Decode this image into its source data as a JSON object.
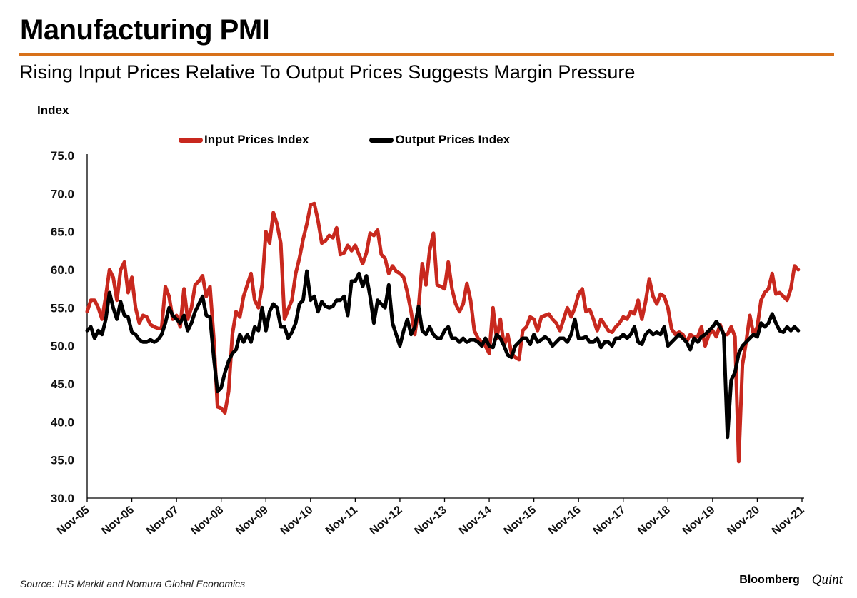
{
  "header": {
    "title": "Manufacturing PMI",
    "subtitle": "Rising Input Prices Relative To Output Prices Suggests Margin Pressure",
    "accent_color": "#d8711a"
  },
  "footer": {
    "source": "Source: IHS Markit and Nomura Global Economics",
    "brand_primary": "Bloomberg",
    "brand_secondary": "Quint"
  },
  "chart_data": {
    "type": "line",
    "title": "Manufacturing PMI",
    "subtitle": "Rising Input Prices Relative To Output Prices Suggests Margin Pressure",
    "xlabel": "",
    "ylabel": "Index",
    "ylim": [
      30,
      75
    ],
    "yticks": [
      "30.0",
      "35.0",
      "40.0",
      "45.0",
      "50.0",
      "55.0",
      "60.0",
      "65.0",
      "70.0",
      "75.0"
    ],
    "ytick_values": [
      30,
      35,
      40,
      45,
      50,
      55,
      60,
      65,
      70,
      75
    ],
    "xticks": [
      "Nov-05",
      "Nov-06",
      "Nov-07",
      "Nov-08",
      "Nov-09",
      "Nov-10",
      "Nov-11",
      "Nov-12",
      "Nov-13",
      "Nov-14",
      "Nov-15",
      "Nov-16",
      "Nov-17",
      "Nov-18",
      "Nov-19",
      "Nov-20",
      "Nov-21"
    ],
    "x_start": "Nov-05",
    "x_end": "Nov-21",
    "frequency": "monthly",
    "grid": false,
    "legend_position": "top-center",
    "series": [
      {
        "name": "Input Prices Index",
        "color": "#c8281e",
        "values": [
          54.5,
          56.0,
          56.0,
          55.0,
          53.5,
          56.5,
          60.0,
          59.0,
          56.0,
          60.0,
          61.0,
          57.0,
          59.0,
          55.0,
          53.0,
          54.0,
          53.8,
          52.8,
          52.5,
          52.3,
          52.3,
          57.8,
          56.5,
          53.5,
          54.0,
          52.5,
          57.5,
          53.5,
          55.0,
          58.0,
          58.5,
          59.2,
          56.5,
          57.8,
          51.0,
          42.0,
          41.8,
          41.2,
          44.0,
          51.5,
          54.5,
          53.8,
          56.5,
          58.0,
          59.5,
          56.0,
          55.0,
          58.0,
          65.0,
          63.5,
          67.5,
          66.0,
          63.5,
          53.5,
          54.8,
          56.0,
          59.5,
          61.5,
          64.0,
          66.0,
          68.5,
          68.7,
          66.5,
          63.5,
          63.8,
          64.5,
          64.2,
          65.5,
          62.0,
          62.2,
          63.2,
          62.5,
          63.2,
          62.0,
          60.8,
          62.2,
          64.8,
          64.5,
          65.2,
          62.0,
          61.5,
          59.5,
          60.5,
          59.8,
          59.5,
          59.0,
          57.0,
          54.5,
          51.5,
          55.0,
          60.8,
          58.0,
          62.5,
          64.8,
          58.0,
          57.8,
          57.5,
          61.0,
          57.5,
          55.5,
          54.5,
          55.5,
          58.2,
          56.0,
          52.0,
          51.0,
          50.5,
          50.0,
          49.0,
          55.0,
          51.0,
          53.5,
          50.0,
          51.5,
          49.0,
          48.5,
          48.2,
          52.0,
          52.5,
          53.8,
          53.5,
          52.0,
          53.8,
          54.0,
          54.2,
          53.5,
          53.0,
          52.0,
          53.5,
          55.0,
          53.8,
          55.0,
          56.8,
          57.5,
          54.5,
          54.8,
          53.5,
          52.0,
          53.5,
          52.8,
          52.0,
          51.8,
          52.5,
          53.0,
          53.8,
          53.5,
          54.5,
          54.2,
          56.0,
          53.5,
          55.8,
          58.8,
          56.5,
          55.5,
          56.8,
          56.5,
          55.0,
          52.2,
          51.5,
          51.8,
          51.5,
          50.5,
          51.5,
          51.2,
          51.2,
          52.5,
          50.0,
          51.5,
          52.0,
          51.2,
          52.8,
          51.5,
          51.5,
          52.5,
          51.2,
          34.8,
          47.5,
          50.5,
          54.0,
          51.5,
          52.5,
          56.0,
          57.0,
          57.5,
          59.5,
          56.8,
          57.0,
          56.5,
          56.0,
          57.5,
          60.5,
          60.0
        ]
      },
      {
        "name": "Output Prices Index",
        "color": "#000000",
        "values": [
          52.0,
          52.5,
          51.0,
          52.0,
          51.5,
          53.5,
          57.0,
          55.0,
          53.5,
          55.8,
          54.0,
          53.8,
          51.8,
          51.5,
          50.8,
          50.5,
          50.5,
          50.8,
          50.5,
          50.8,
          51.5,
          53.0,
          55.0,
          54.0,
          53.5,
          53.0,
          54.0,
          52.0,
          53.0,
          54.5,
          55.5,
          56.5,
          54.0,
          53.8,
          48.5,
          44.0,
          44.5,
          46.5,
          48.0,
          49.0,
          49.5,
          51.5,
          50.5,
          51.5,
          50.5,
          52.5,
          52.0,
          55.0,
          52.0,
          54.5,
          55.5,
          55.0,
          52.5,
          52.5,
          51.0,
          51.8,
          53.0,
          55.5,
          56.0,
          59.8,
          56.0,
          56.5,
          54.5,
          55.8,
          55.2,
          55.0,
          55.2,
          56.0,
          56.0,
          56.5,
          54.0,
          58.5,
          58.5,
          59.5,
          57.8,
          59.2,
          56.5,
          53.0,
          56.0,
          55.5,
          55.0,
          58.0,
          53.0,
          51.5,
          50.0,
          52.0,
          53.5,
          51.5,
          52.5,
          55.2,
          52.0,
          51.5,
          52.5,
          51.5,
          51.0,
          51.0,
          52.0,
          52.5,
          51.0,
          51.0,
          50.5,
          51.0,
          50.5,
          50.8,
          50.8,
          50.5,
          50.0,
          51.0,
          50.0,
          49.8,
          51.5,
          51.0,
          50.0,
          48.8,
          48.5,
          50.0,
          50.5,
          51.0,
          51.0,
          50.2,
          51.5,
          50.5,
          50.8,
          51.2,
          50.8,
          50.0,
          50.5,
          51.0,
          51.0,
          50.5,
          51.5,
          53.5,
          51.0,
          51.0,
          51.2,
          50.5,
          50.5,
          51.0,
          49.8,
          50.5,
          50.5,
          50.0,
          51.0,
          51.0,
          51.5,
          51.0,
          51.5,
          52.5,
          50.5,
          50.2,
          51.5,
          52.0,
          51.5,
          51.8,
          51.5,
          52.5,
          50.0,
          50.5,
          51.0,
          51.5,
          51.0,
          50.5,
          49.5,
          51.0,
          50.5,
          51.2,
          51.5,
          52.0,
          52.5,
          53.2,
          52.5,
          51.5,
          38.0,
          45.5,
          46.5,
          49.0,
          50.0,
          50.5,
          51.0,
          51.5,
          51.2,
          53.0,
          52.5,
          53.0,
          54.2,
          53.0,
          52.0,
          51.8,
          52.5,
          52.0,
          52.5,
          52.0
        ]
      }
    ]
  }
}
